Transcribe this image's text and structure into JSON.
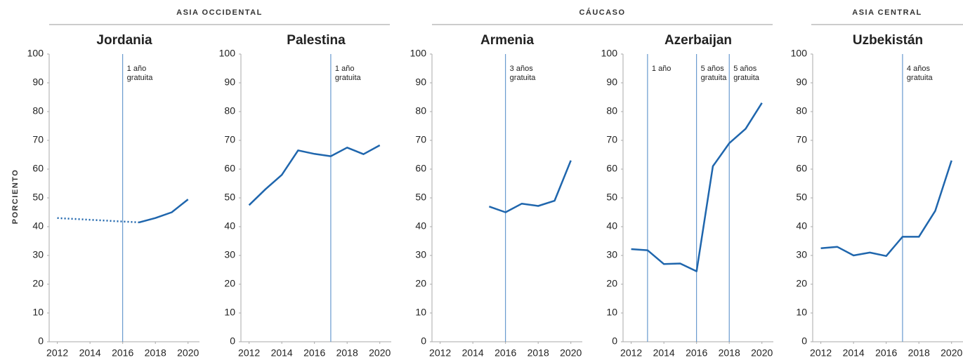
{
  "y_label": "PORCIENTO",
  "groups": [
    {
      "label": "ASIA OCCIDENTAL"
    },
    {
      "label": "CÁUCASO"
    },
    {
      "label": "ASIA CENTRAL"
    }
  ],
  "chart_data": [
    {
      "type": "line",
      "title": "Jordania",
      "xlim": [
        2011.5,
        2020.7
      ],
      "xticks": [
        2012,
        2014,
        2016,
        2018,
        2020
      ],
      "ylim": [
        0,
        100
      ],
      "yticks": [
        0,
        10,
        20,
        30,
        40,
        50,
        60,
        70,
        80,
        90,
        100
      ],
      "series": [
        {
          "color": "#1f66ad",
          "dashed": true,
          "x": [
            2012,
            2017
          ],
          "values": [
            43,
            41.5
          ]
        },
        {
          "color": "#1f66ad",
          "x": [
            2017,
            2018,
            2019,
            2020
          ],
          "values": [
            41.5,
            43,
            45,
            49.5
          ]
        }
      ],
      "annotations": [
        {
          "x": 2016,
          "lines": [
            "1 año",
            "gratuita"
          ]
        }
      ]
    },
    {
      "type": "line",
      "title": "Palestina",
      "xlim": [
        2011.5,
        2020.7
      ],
      "xticks": [
        2012,
        2014,
        2016,
        2018,
        2020
      ],
      "ylim": [
        0,
        100
      ],
      "yticks": [
        0,
        10,
        20,
        30,
        40,
        50,
        60,
        70,
        80,
        90,
        100
      ],
      "series": [
        {
          "color": "#1f66ad",
          "x": [
            2012,
            2013,
            2014,
            2015,
            2016,
            2017,
            2018,
            2019,
            2020
          ],
          "values": [
            47.5,
            53,
            58,
            66.5,
            65.3,
            64.5,
            67.5,
            65.2,
            68.3
          ]
        }
      ],
      "annotations": [
        {
          "x": 2017,
          "lines": [
            "1 año",
            "gratuita"
          ]
        }
      ]
    },
    {
      "type": "line",
      "title": "Armenia",
      "xlim": [
        2011.5,
        2020.7
      ],
      "xticks": [
        2012,
        2014,
        2016,
        2018,
        2020
      ],
      "ylim": [
        0,
        100
      ],
      "yticks": [
        0,
        10,
        20,
        30,
        40,
        50,
        60,
        70,
        80,
        90,
        100
      ],
      "series": [
        {
          "color": "#1f66ad",
          "x": [
            2015,
            2016,
            2017,
            2018,
            2019,
            2020
          ],
          "values": [
            47,
            45,
            48,
            47.2,
            49,
            63
          ]
        }
      ],
      "annotations": [
        {
          "x": 2016,
          "lines": [
            "3 años",
            "gratuita"
          ]
        }
      ]
    },
    {
      "type": "line",
      "title": "Azerbaijan",
      "xlim": [
        2011.5,
        2020.7
      ],
      "xticks": [
        2012,
        2014,
        2016,
        2018,
        2020
      ],
      "ylim": [
        0,
        100
      ],
      "yticks": [
        0,
        10,
        20,
        30,
        40,
        50,
        60,
        70,
        80,
        90,
        100
      ],
      "series": [
        {
          "color": "#1f66ad",
          "x": [
            2012,
            2013,
            2014,
            2015,
            2016,
            2017,
            2018,
            2019,
            2020
          ],
          "values": [
            32.2,
            31.8,
            27,
            27.2,
            24.5,
            61,
            69,
            74,
            83
          ]
        }
      ],
      "annotations": [
        {
          "x": 2013,
          "lines": [
            "1 año"
          ]
        },
        {
          "x": 2016,
          "lines": [
            "5 años",
            "gratuita"
          ]
        },
        {
          "x": 2018,
          "lines": [
            "5 años",
            "gratuita"
          ]
        }
      ]
    },
    {
      "type": "line",
      "title": "Uzbekistán",
      "xlim": [
        2011.5,
        2020.7
      ],
      "xticks": [
        2012,
        2014,
        2016,
        2018,
        2020
      ],
      "ylim": [
        0,
        100
      ],
      "yticks": [
        0,
        10,
        20,
        30,
        40,
        50,
        60,
        70,
        80,
        90,
        100
      ],
      "series": [
        {
          "color": "#1f66ad",
          "x": [
            2012,
            2013,
            2014,
            2015,
            2016,
            2017,
            2018,
            2019,
            2020
          ],
          "values": [
            32.5,
            33,
            30,
            31,
            29.8,
            36.5,
            36.5,
            45.5,
            63
          ]
        }
      ],
      "annotations": [
        {
          "x": 2017,
          "lines": [
            "4 años",
            "gratuita"
          ]
        }
      ]
    }
  ]
}
